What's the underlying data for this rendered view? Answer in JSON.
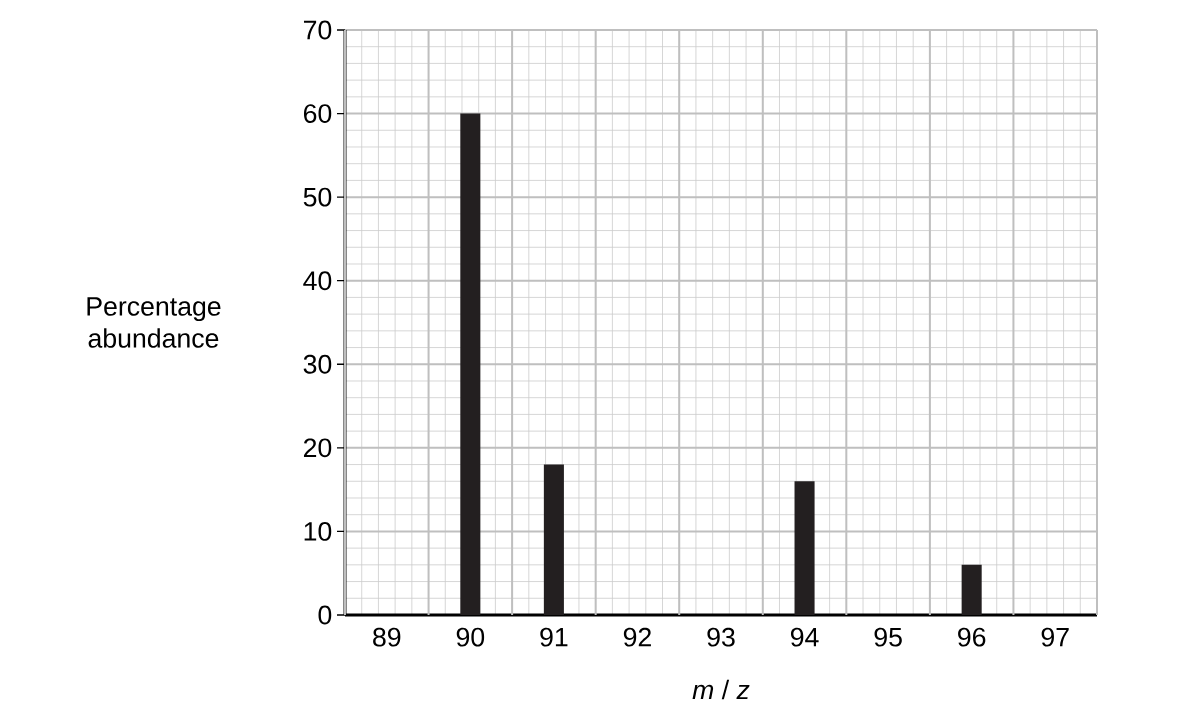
{
  "chart_data": {
    "type": "bar",
    "xlabel": "*m* / *z*",
    "ylabel": "Percentage abundance",
    "categories": [
      "89",
      "90",
      "91",
      "92",
      "93",
      "94",
      "95",
      "96",
      "97"
    ],
    "values": [
      0,
      60,
      18,
      0,
      0,
      16,
      0,
      6,
      0
    ],
    "color": "#231f20",
    "ylim": [
      0,
      70
    ],
    "yticks": [
      0,
      10,
      20,
      30,
      40,
      50,
      60,
      70
    ],
    "grid": true
  }
}
